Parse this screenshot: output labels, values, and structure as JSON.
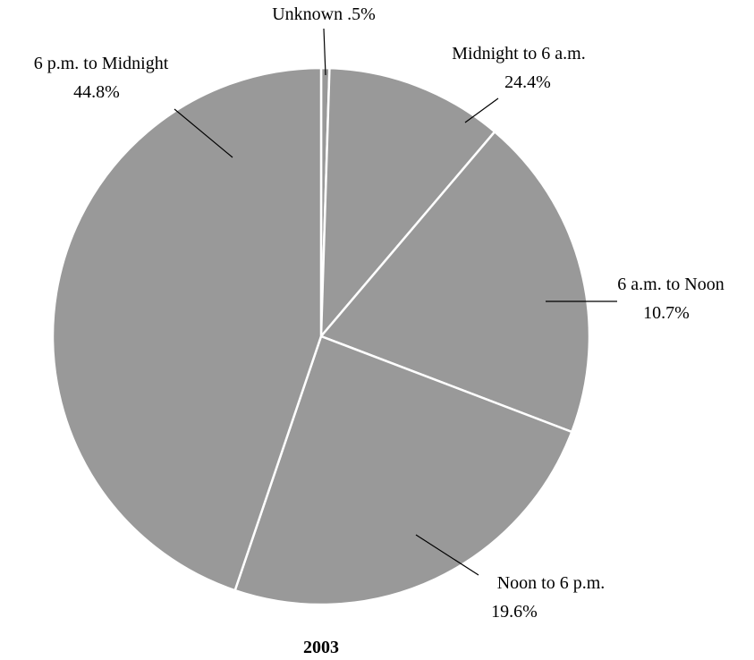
{
  "chart_data": {
    "type": "pie",
    "title": "2003",
    "categories": [
      "Unknown",
      "6 a.m. to Noon",
      "Noon to 6 p.m.",
      "Midnight to 6 a.m.",
      "6 p.m. to Midnight"
    ],
    "values": [
      0.5,
      10.7,
      19.6,
      24.4,
      44.8
    ],
    "value_labels": [
      ".5%",
      "10.7%",
      "19.6%",
      "24.4%",
      "44.8%"
    ],
    "color": "#999999"
  }
}
